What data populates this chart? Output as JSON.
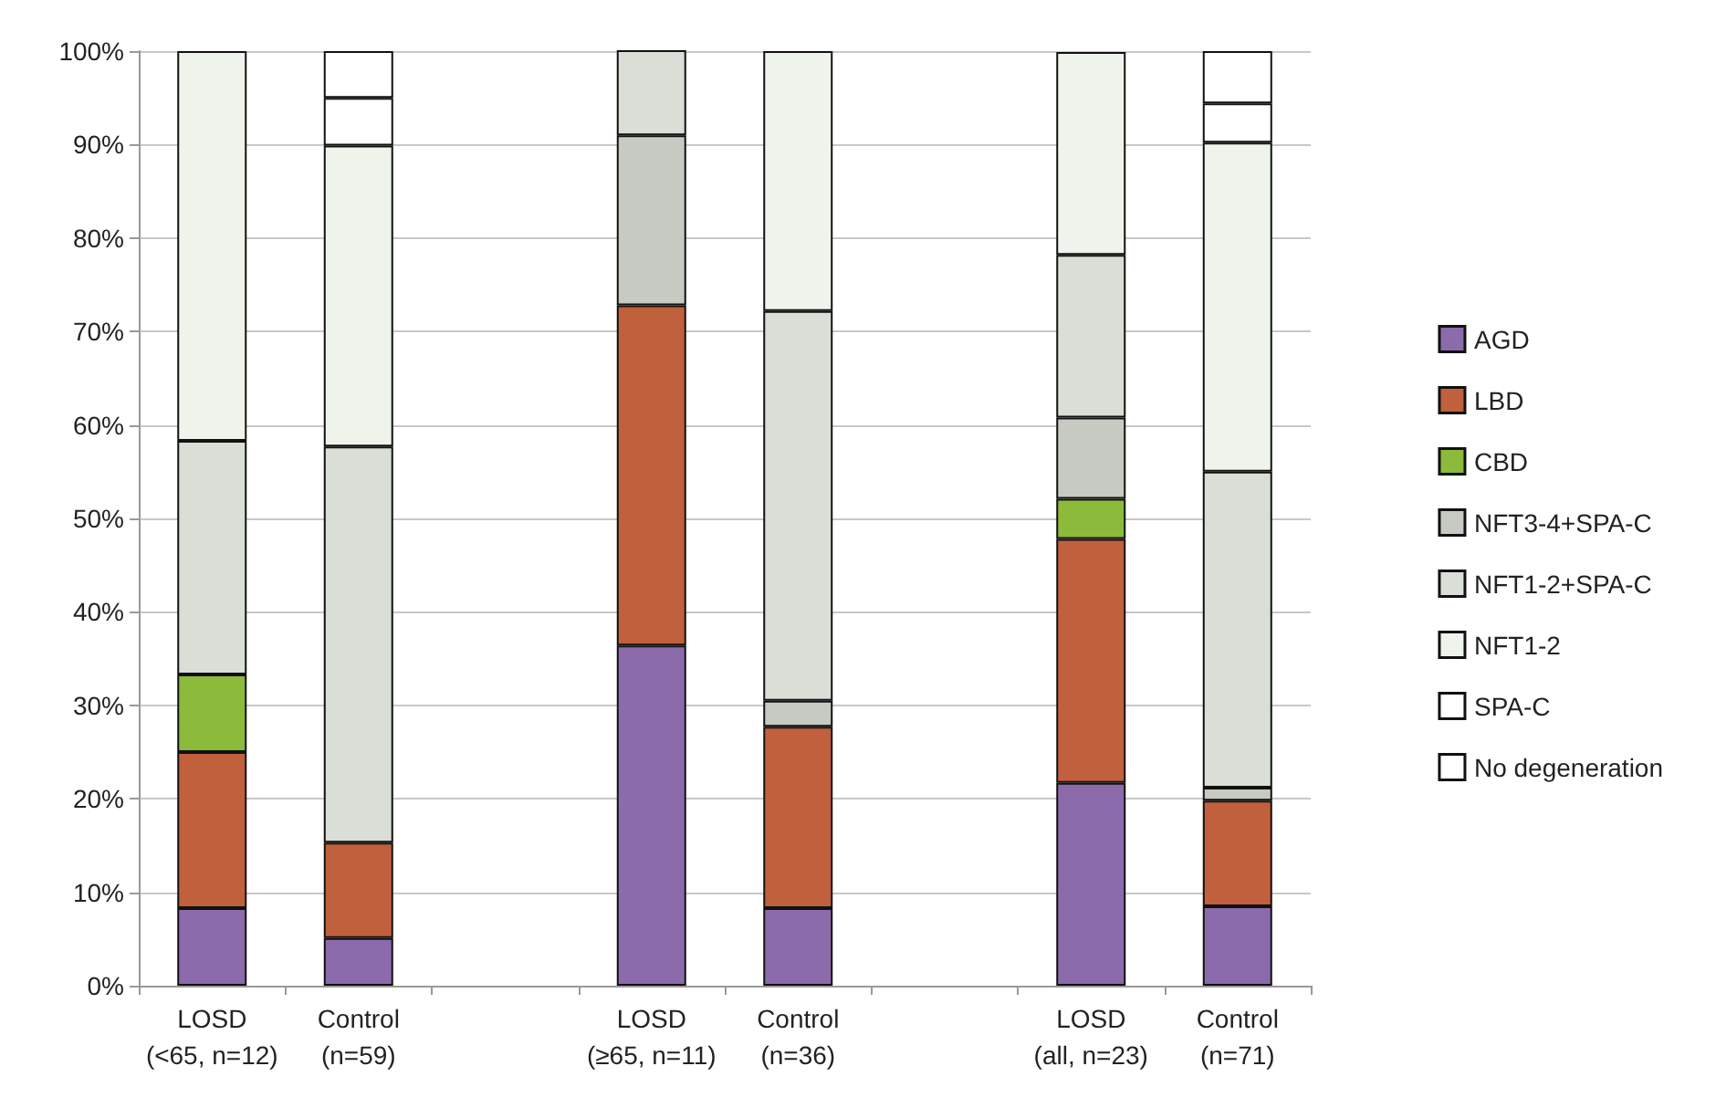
{
  "chart_data": {
    "type": "bar",
    "stacked": true,
    "categories": [
      "LOSD\n(<65, n=12)",
      "Control\n(n=59)",
      null,
      "LOSD\n(≥65, n=11)",
      "Control\n(n=36)",
      null,
      "LOSD\n(all, n=23)",
      "Control\n(n=71)"
    ],
    "series": [
      {
        "name": "AGD",
        "color": "#8b6bab",
        "values": [
          8.3,
          5.1,
          null,
          36.4,
          8.3,
          null,
          21.7,
          8.5
        ]
      },
      {
        "name": "LBD",
        "color": "#c0603c",
        "values": [
          16.7,
          10.2,
          null,
          36.4,
          19.4,
          null,
          26.1,
          11.3
        ]
      },
      {
        "name": "CBD",
        "color": "#8cba3a",
        "values": [
          8.3,
          null,
          null,
          null,
          null,
          null,
          4.3,
          null
        ]
      },
      {
        "name": "NFT3-4+SPA-C",
        "color": "#c6cac2",
        "values": [
          null,
          null,
          null,
          18.2,
          2.8,
          null,
          8.7,
          1.4
        ]
      },
      {
        "name": "NFT1-2+SPA-C",
        "color": "#d9ded6",
        "values": [
          25,
          42.4,
          null,
          9.1,
          41.7,
          null,
          17.4,
          33.8
        ]
      },
      {
        "name": "NFT1-2",
        "color": "#eef3ec",
        "values": [
          41.7,
          32.2,
          null,
          null,
          27.8,
          null,
          21.7,
          35.2
        ]
      },
      {
        "name": "SPA-C",
        "color": "#ffffff",
        "values": [
          null,
          5.1,
          null,
          null,
          null,
          null,
          null,
          4.2
        ]
      },
      {
        "name": "No degeneration",
        "color": "#ffffff",
        "values": [
          null,
          5.0,
          null,
          null,
          null,
          null,
          null,
          5.6
        ]
      }
    ],
    "ylim": [
      0,
      100
    ],
    "yticks": [
      {
        "value": 0,
        "label": "0%"
      },
      {
        "value": 10,
        "label": "10%"
      },
      {
        "value": 20,
        "label": "20%"
      },
      {
        "value": 30,
        "label": "30%"
      },
      {
        "value": 40,
        "label": "40%"
      },
      {
        "value": 50,
        "label": "50%"
      },
      {
        "value": 60,
        "label": "60%"
      },
      {
        "value": 70,
        "label": "70%"
      },
      {
        "value": 80,
        "label": "80%"
      },
      {
        "value": 90,
        "label": "90%"
      },
      {
        "value": 100,
        "label": "100%"
      }
    ],
    "grid": "y",
    "legend": "right"
  }
}
